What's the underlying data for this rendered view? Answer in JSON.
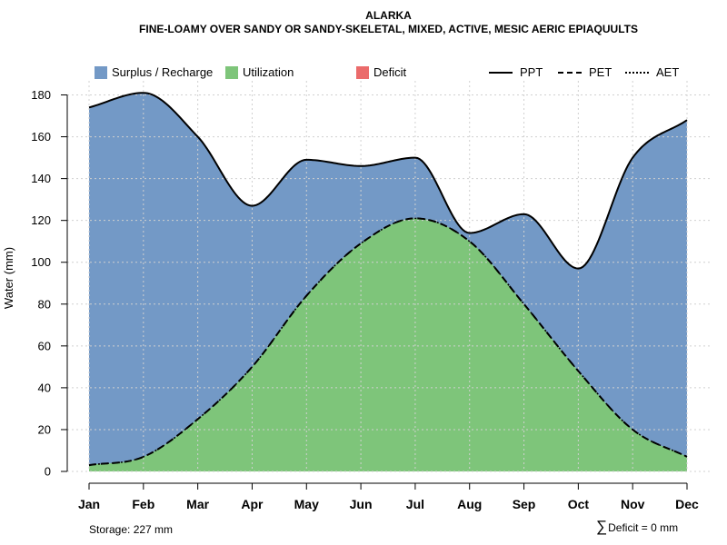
{
  "chart_data": {
    "type": "area",
    "title": "ALARKA",
    "subtitle": "FINE-LOAMY OVER SANDY OR SANDY-SKELETAL, MIXED, ACTIVE, MESIC AERIC EPIAQUULTS",
    "xlabel": "",
    "ylabel": "Water (mm)",
    "categories": [
      "Jan",
      "Feb",
      "Mar",
      "Apr",
      "May",
      "Jun",
      "Jul",
      "Aug",
      "Sep",
      "Oct",
      "Nov",
      "Dec"
    ],
    "ylim": [
      0,
      185
    ],
    "yticks": [
      0,
      20,
      40,
      60,
      80,
      100,
      120,
      140,
      160,
      180
    ],
    "grid": true,
    "legend": {
      "position": "top",
      "fills": [
        {
          "name": "Surplus / Recharge",
          "color": "#7399C6"
        },
        {
          "name": "Utilization",
          "color": "#7EC57A"
        },
        {
          "name": "Deficit",
          "color": "#EB6B6B"
        }
      ],
      "lines": [
        {
          "name": "PPT",
          "style": "solid"
        },
        {
          "name": "PET",
          "style": "dashed"
        },
        {
          "name": "AET",
          "style": "dotted"
        }
      ]
    },
    "series": [
      {
        "name": "PPT",
        "values": [
          174,
          181,
          160,
          127,
          149,
          146,
          150,
          114,
          123,
          97,
          150,
          168
        ]
      },
      {
        "name": "PET",
        "values": [
          3,
          7,
          25,
          50,
          84,
          109,
          121,
          110,
          80,
          48,
          20,
          7
        ]
      },
      {
        "name": "AET",
        "values": [
          3,
          7,
          25,
          50,
          84,
          109,
          121,
          110,
          80,
          48,
          20,
          7
        ]
      }
    ],
    "annotations": {
      "storage": "Storage: 227 mm",
      "deficit": "Deficit = 0 mm"
    }
  }
}
